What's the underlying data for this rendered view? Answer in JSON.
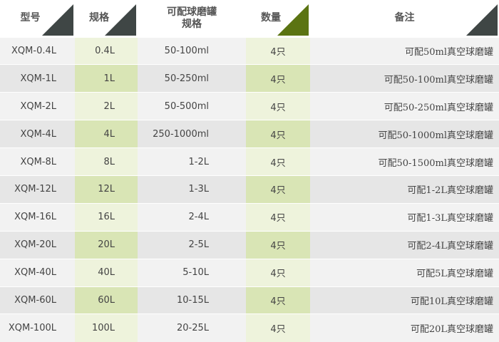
{
  "headers": [
    "型号",
    "规格",
    "可配球磨罐规格",
    "数量",
    "备注"
  ],
  "header_jar_line1": "可配球磨罐",
  "header_jar_line2": "规格",
  "colors": {
    "header_triangle_dark": "#3f4645",
    "header_triangle_green": "#5b7412",
    "green_cell_light": "#eef3dc",
    "green_cell_dark": "#d9e5b5"
  },
  "rows": [
    {
      "model": "XQM-0.4L",
      "spec": "0.4L",
      "jar": "50-100ml",
      "qty": "4只",
      "note": "可配50ml真空球磨罐"
    },
    {
      "model": "XQM-1L",
      "spec": "1L",
      "jar": "50-250ml",
      "qty": "4只",
      "note": "可配50-100ml真空球磨罐"
    },
    {
      "model": "XQM-2L",
      "spec": "2L",
      "jar": "50-500ml",
      "qty": "4只",
      "note": "可配50-250ml真空球磨罐"
    },
    {
      "model": "XQM-4L",
      "spec": "4L",
      "jar": "250-1000ml",
      "qty": "4只",
      "note": "可配50-1000ml真空球磨罐"
    },
    {
      "model": "XQM-8L",
      "spec": "8L",
      "jar": "1-2L",
      "qty": "4只",
      "note": "可配50-1500ml真空球磨罐"
    },
    {
      "model": "XQM-12L",
      "spec": "12L",
      "jar": "1-3L",
      "qty": "4只",
      "note": "可配1-2L真空球磨罐"
    },
    {
      "model": "XQM-16L",
      "spec": "16L",
      "jar": "2-4L",
      "qty": "4只",
      "note": "可配1-3L真空球磨罐"
    },
    {
      "model": "XQM-20L",
      "spec": "20L",
      "jar": "2-5L",
      "qty": "4只",
      "note": "可配2-4L真空球磨罐"
    },
    {
      "model": "XQM-40L",
      "spec": "40L",
      "jar": "5-10L",
      "qty": "4只",
      "note": "可配5L真空球磨罐"
    },
    {
      "model": "XQM-60L",
      "spec": "60L",
      "jar": "10-15L",
      "qty": "4只",
      "note": "可配10L真空球磨罐"
    },
    {
      "model": "XQM-100L",
      "spec": "100L",
      "jar": "20-25L",
      "qty": "4只",
      "note": "可配20L真空球磨罐"
    }
  ]
}
